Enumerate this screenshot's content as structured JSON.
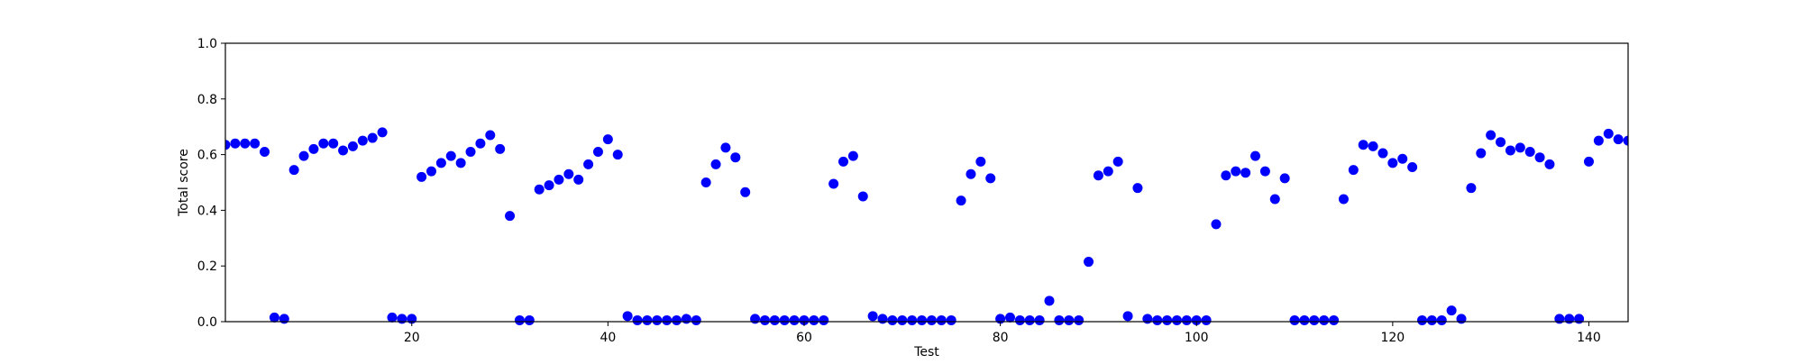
{
  "chart_data": {
    "type": "scatter",
    "title": "",
    "xlabel": "Test",
    "ylabel": "Total score",
    "xlim": [
      1,
      144
    ],
    "ylim": [
      0.0,
      1.0
    ],
    "x_ticks": [
      20,
      40,
      60,
      80,
      100,
      120,
      140
    ],
    "x_tick_labels": [
      "20",
      "40",
      "60",
      "80",
      "100",
      "120",
      "140"
    ],
    "y_ticks": [
      0.0,
      0.2,
      0.4,
      0.6,
      0.8,
      1.0
    ],
    "y_tick_labels": [
      "0.0",
      "0.2",
      "0.4",
      "0.6",
      "0.8",
      "1.0"
    ],
    "grid": false,
    "marker_color": "#0000ff",
    "series": [
      {
        "x": [
          1,
          2,
          3,
          4,
          5,
          6,
          7,
          8,
          9,
          10,
          11,
          12,
          13,
          14,
          15,
          16,
          17,
          18,
          19,
          20,
          21,
          22,
          23,
          24,
          25,
          26,
          27,
          28,
          29,
          30,
          31,
          32,
          33,
          34,
          35,
          36,
          37,
          38,
          39,
          40,
          41,
          42,
          43,
          44,
          45,
          46,
          47,
          48,
          49,
          50,
          51,
          52,
          53,
          54,
          55,
          56,
          57,
          58,
          59,
          60,
          61,
          62,
          63,
          64,
          65,
          66,
          67,
          68,
          69,
          70,
          71,
          72,
          73,
          74,
          75,
          76,
          77,
          78,
          79,
          80,
          81,
          82,
          83,
          84,
          85,
          86,
          87,
          88,
          89,
          90,
          91,
          92,
          93,
          94,
          95,
          96,
          97,
          98,
          99,
          100,
          101,
          102,
          103,
          104,
          105,
          106,
          107,
          108,
          109,
          110,
          111,
          112,
          113,
          114,
          115,
          116,
          117,
          118,
          119,
          120,
          121,
          122,
          123,
          124,
          125,
          126,
          127,
          128,
          129,
          130,
          131,
          132,
          133,
          134,
          135,
          136,
          137,
          138,
          139,
          140,
          141,
          142,
          143,
          144
        ],
        "y": [
          0.635,
          0.64,
          0.64,
          0.64,
          0.61,
          0.015,
          0.01,
          0.545,
          0.595,
          0.62,
          0.64,
          0.64,
          0.615,
          0.63,
          0.65,
          0.66,
          0.68,
          0.015,
          0.01,
          0.01,
          0.52,
          0.54,
          0.57,
          0.595,
          0.57,
          0.61,
          0.64,
          0.67,
          0.62,
          0.38,
          0.005,
          0.005,
          0.475,
          0.49,
          0.51,
          0.53,
          0.51,
          0.565,
          0.61,
          0.655,
          0.6,
          0.02,
          0.005,
          0.005,
          0.005,
          0.005,
          0.005,
          0.01,
          0.005,
          0.5,
          0.565,
          0.625,
          0.59,
          0.465,
          0.01,
          0.005,
          0.005,
          0.005,
          0.005,
          0.005,
          0.005,
          0.005,
          0.495,
          0.575,
          0.595,
          0.45,
          0.02,
          0.01,
          0.005,
          0.005,
          0.005,
          0.005,
          0.005,
          0.005,
          0.005,
          0.435,
          0.53,
          0.575,
          0.515,
          0.01,
          0.015,
          0.005,
          0.005,
          0.005,
          0.075,
          0.005,
          0.005,
          0.005,
          0.215,
          0.525,
          0.54,
          0.575,
          0.02,
          0.48,
          0.01,
          0.005,
          0.005,
          0.005,
          0.005,
          0.005,
          0.005,
          0.35,
          0.525,
          0.54,
          0.535,
          0.595,
          0.54,
          0.44,
          0.515,
          0.005,
          0.005,
          0.005,
          0.005,
          0.005,
          0.44,
          0.545,
          0.635,
          0.63,
          0.605,
          0.57,
          0.585,
          0.555,
          0.005,
          0.005,
          0.005,
          0.04,
          0.01,
          0.48,
          0.605,
          0.67,
          0.645,
          0.615,
          0.625,
          0.61,
          0.59,
          0.565,
          0.01,
          0.01,
          0.01,
          0.575,
          0.65,
          0.675,
          0.655,
          0.65
        ]
      }
    ]
  }
}
